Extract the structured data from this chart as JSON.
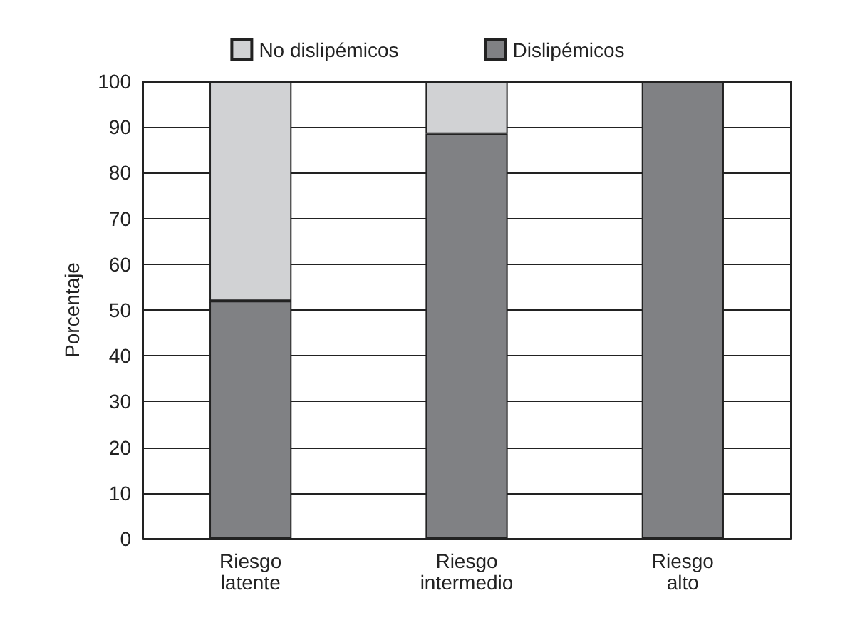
{
  "chart_data": {
    "type": "bar",
    "stacked": true,
    "ylabel": "Porcentaje",
    "categories": [
      "Riesgo\nlatente",
      "Riesgo\nintermedio",
      "Riesgo\nalto"
    ],
    "series": [
      {
        "name": "Dislipémicos",
        "color": "#808184",
        "values": [
          52,
          88.5,
          100
        ]
      },
      {
        "name": "No dislipémicos",
        "color": "#d1d2d4",
        "values": [
          48,
          11.5,
          0
        ]
      }
    ],
    "ylim": [
      0,
      100
    ],
    "yticks": [
      0,
      10,
      20,
      30,
      40,
      50,
      60,
      70,
      80,
      90,
      100
    ],
    "grid": "y",
    "legend": "top"
  }
}
